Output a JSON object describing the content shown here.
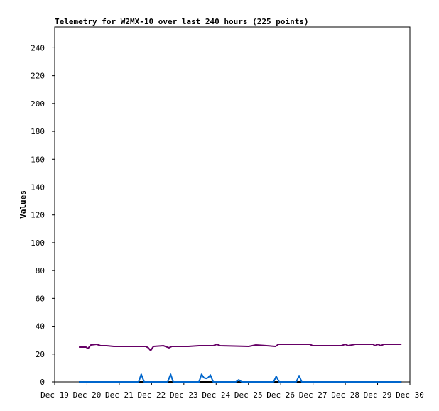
{
  "chart_data": {
    "type": "line",
    "title": "Telemetry for W2MX-10 over last 240 hours (225 points)",
    "y_label": "Values",
    "xlim": [
      19,
      30
    ],
    "xticks": [
      {
        "value": 19,
        "label": "Dec 19"
      },
      {
        "value": 20,
        "label": "Dec 20"
      },
      {
        "value": 21,
        "label": "Dec 21"
      },
      {
        "value": 22,
        "label": "Dec 22"
      },
      {
        "value": 23,
        "label": "Dec 23"
      },
      {
        "value": 24,
        "label": "Dec 24"
      },
      {
        "value": 25,
        "label": "Dec 25"
      },
      {
        "value": 26,
        "label": "Dec 26"
      },
      {
        "value": 27,
        "label": "Dec 27"
      },
      {
        "value": 28,
        "label": "Dec 28"
      },
      {
        "value": 29,
        "label": "Dec 29"
      },
      {
        "value": 30,
        "label": "Dec 30"
      }
    ],
    "ylim": [
      0,
      255
    ],
    "yticks": [
      0,
      20,
      40,
      60,
      80,
      100,
      120,
      140,
      160,
      180,
      200,
      220,
      240
    ],
    "grid": false,
    "series": [
      {
        "color": "#660066",
        "x": [
          19.75,
          19.97,
          20.03,
          20.12,
          20.3,
          20.43,
          20.61,
          20.83,
          21.82,
          21.9,
          21.97,
          22.06,
          22.37,
          22.48,
          22.54,
          22.63,
          23.14,
          23.47,
          23.91,
          24.02,
          24.13,
          25.01,
          25.23,
          25.56,
          25.84,
          25.93,
          26.9,
          26.99,
          27.87,
          28.0,
          28.09,
          28.31,
          28.86,
          28.92,
          29.01,
          29.1,
          29.19,
          29.74
        ],
        "values": [
          25,
          25,
          24,
          26.5,
          27,
          26,
          26,
          25.5,
          25.5,
          24.5,
          22.5,
          25.5,
          26,
          25,
          24.5,
          25.5,
          25.5,
          26,
          26,
          27,
          26,
          25.5,
          26.5,
          26,
          25.5,
          27,
          27,
          26,
          26,
          27,
          26,
          27,
          27,
          26,
          27,
          26,
          27,
          27
        ]
      },
      {
        "color": "#000000",
        "x": [
          19.75,
          29.74
        ],
        "values": [
          0,
          0
        ]
      },
      {
        "color": "#0066cc",
        "x": [
          19.75,
          21.6,
          21.68,
          21.77,
          22.5,
          22.59,
          22.67,
          23.47,
          23.55,
          23.62,
          23.69,
          23.75,
          23.82,
          23.91,
          24.61,
          24.7,
          24.79,
          25.78,
          25.86,
          25.95,
          26.48,
          26.57,
          26.65,
          29.74
        ],
        "values": [
          0,
          0,
          5.5,
          0,
          0,
          5.5,
          0,
          0,
          5.5,
          3,
          2.5,
          3,
          5,
          0,
          0,
          1.5,
          0,
          0,
          4,
          0,
          0,
          4.5,
          0,
          0
        ]
      }
    ]
  }
}
